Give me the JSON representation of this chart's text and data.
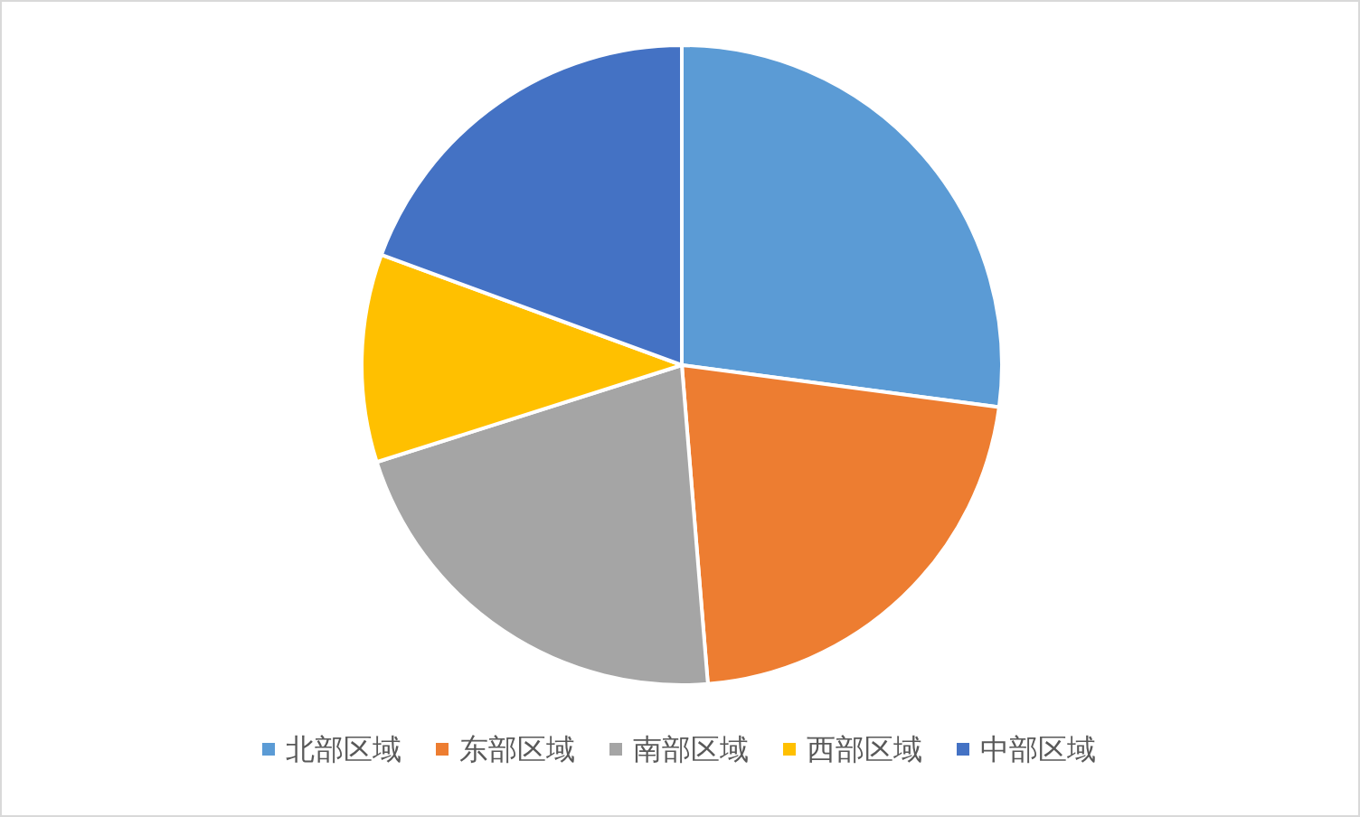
{
  "chart_data": {
    "type": "pie",
    "categories": [
      "北部区域",
      "东部区域",
      "南部区域",
      "西部区域",
      "中部区域"
    ],
    "values": [
      27.1,
      21.6,
      21.4,
      10.5,
      19.4
    ],
    "colors": [
      "#5b9bd5",
      "#ed7d31",
      "#a5a5a5",
      "#ffc000",
      "#4472c4"
    ],
    "legend": "bottom"
  }
}
